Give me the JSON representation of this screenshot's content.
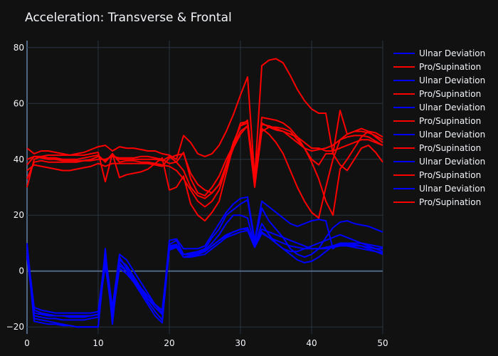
{
  "chart_data": {
    "type": "line",
    "title": "Acceleration: Transverse & Frontal",
    "xlabel": "",
    "ylabel": "",
    "xlim": [
      0,
      50
    ],
    "ylim": [
      -22.5,
      82.5
    ],
    "x_ticks": [
      "0",
      "10",
      "20",
      "30",
      "40",
      "50"
    ],
    "y_ticks": [
      "−20",
      "0",
      "20",
      "40",
      "60",
      "80"
    ],
    "grid": true,
    "legend_position": "right",
    "colors": {
      "Ulnar Deviation": "#0000ff",
      "Pro/Supination": "#ff0000"
    },
    "series": [
      {
        "name": "Ulnar Deviation",
        "color": "#0000ff",
        "values": [
          10,
          -17,
          -17.5,
          -18,
          -18.5,
          -19,
          -19.5,
          -20,
          -20,
          -20,
          -20,
          8,
          -19,
          5,
          1,
          -3,
          -7,
          -11,
          -14.5,
          -17.5,
          9.5,
          11,
          6,
          6.5,
          7,
          8,
          12,
          15,
          20,
          22,
          24,
          25.5,
          10,
          22.5,
          18,
          15,
          12,
          8,
          6,
          5,
          6,
          8,
          12,
          15.5,
          17.5,
          18,
          17,
          16.5,
          16,
          15,
          14
        ]
      },
      {
        "name": "Pro/Supination",
        "color": "#ff0000",
        "values": [
          30,
          40,
          41,
          41.5,
          41.5,
          41.5,
          41.5,
          41.5,
          41.5,
          42,
          42.5,
          32,
          42,
          33.5,
          34.5,
          35,
          35.5,
          36.5,
          38.5,
          40.5,
          29,
          30,
          34,
          24,
          20,
          18,
          21,
          25,
          35,
          45,
          53,
          53.5,
          34,
          53,
          51.5,
          50.5,
          50,
          49,
          48,
          46,
          44,
          44,
          43,
          43,
          44,
          45,
          46,
          47,
          47,
          46,
          45
        ]
      },
      {
        "name": "Ulnar Deviation",
        "color": "#0000ff",
        "values": [
          8,
          -13,
          -14,
          -14.5,
          -15,
          -15,
          -15,
          -15,
          -15,
          -15,
          -14.5,
          6,
          -13,
          6,
          4,
          0,
          -4,
          -8,
          -12,
          -15,
          11,
          11.5,
          8,
          8,
          8,
          9,
          13,
          17,
          21,
          24,
          26,
          26.5,
          11,
          25,
          23,
          21,
          19,
          17,
          16,
          17,
          18,
          18.5,
          18,
          8,
          10,
          10,
          10,
          10,
          9.5,
          9,
          8.5
        ]
      },
      {
        "name": "Pro/Supination",
        "color": "#ff0000",
        "values": [
          44,
          42,
          43,
          43,
          42.5,
          42,
          41.5,
          42,
          42.5,
          43.5,
          44.5,
          45,
          43,
          44.5,
          44,
          44,
          43.5,
          43,
          43,
          42,
          41.5,
          40,
          48.5,
          46,
          42,
          41,
          42,
          45,
          50,
          56,
          63,
          69.5,
          33.5,
          73.5,
          75.5,
          76,
          74.5,
          70,
          65,
          61,
          58,
          56.5,
          56.5,
          42,
          57.5,
          49,
          50,
          51,
          50,
          49.5,
          48
        ]
      },
      {
        "name": "Ulnar Deviation",
        "color": "#0000ff",
        "values": [
          6,
          -16,
          -16.5,
          -17,
          -17,
          -17.5,
          -17.5,
          -17.5,
          -17.5,
          -17,
          -16.5,
          3,
          -17,
          2,
          0,
          -3,
          -6,
          -9,
          -12,
          -14,
          8.5,
          9.5,
          6,
          6,
          6.5,
          7,
          9,
          11,
          13,
          14,
          15,
          15.5,
          9.5,
          15,
          14,
          13,
          12,
          11,
          10,
          9,
          8,
          8,
          8.5,
          9,
          9.5,
          9.5,
          9,
          9,
          8.5,
          8,
          8
        ]
      },
      {
        "name": "Pro/Supination",
        "color": "#ff0000",
        "values": [
          38,
          41,
          41,
          40.5,
          40.5,
          40,
          40,
          40,
          40.5,
          41,
          41.5,
          39,
          42,
          39,
          39.5,
          39.5,
          39,
          39,
          38.5,
          38,
          37.5,
          36,
          33,
          29,
          25,
          23,
          25,
          29,
          37,
          46,
          52,
          54,
          30.5,
          55,
          54.5,
          54,
          53,
          51,
          48,
          44,
          39,
          33,
          25,
          20,
          36.5,
          40,
          44,
          48,
          50,
          48,
          46
        ]
      },
      {
        "name": "Ulnar Deviation",
        "color": "#0000ff",
        "values": [
          9,
          -14,
          -15,
          -15.5,
          -16,
          -16,
          -16,
          -16,
          -16,
          -16,
          -15.5,
          4,
          -15,
          4,
          2,
          -2,
          -6,
          -10,
          -13,
          -15.5,
          9,
          9.5,
          6,
          6,
          6.5,
          7.5,
          10,
          13,
          17,
          20,
          20,
          19,
          9,
          17,
          13,
          10,
          8,
          7,
          7,
          8,
          9,
          10,
          11,
          12,
          13,
          12,
          11,
          10,
          9,
          8,
          7
        ]
      },
      {
        "name": "Pro/Supination",
        "color": "#ff0000",
        "values": [
          36,
          38,
          37.5,
          37,
          36.5,
          36,
          36,
          36.5,
          37,
          37.5,
          38.5,
          37.5,
          38.5,
          38.5,
          38.5,
          38.5,
          38.5,
          38.5,
          38,
          37.5,
          40.5,
          41.5,
          42,
          35,
          31,
          29,
          28,
          31,
          37,
          44,
          49,
          52,
          31,
          51,
          49,
          46,
          42,
          36,
          30,
          25,
          21,
          19,
          30,
          40,
          47,
          49,
          50,
          50,
          49.5,
          48.5,
          47
        ]
      },
      {
        "name": "Ulnar Deviation",
        "color": "#0000ff",
        "values": [
          7,
          -18,
          -18.5,
          -19,
          -19,
          -19.5,
          -19.5,
          -20,
          -20,
          -20,
          -20,
          5,
          -18,
          3,
          0,
          -4,
          -8,
          -12,
          -16,
          -18.5,
          8,
          9,
          5,
          5.5,
          6,
          7,
          9,
          11,
          12.5,
          14,
          15,
          15,
          9,
          14,
          12,
          10,
          8,
          6,
          4,
          3,
          3.5,
          5,
          7,
          9,
          10,
          10,
          9.5,
          9,
          8,
          7,
          6
        ]
      },
      {
        "name": "Pro/Supination",
        "color": "#ff0000",
        "values": [
          33,
          39,
          39.5,
          39,
          39,
          39,
          39,
          39,
          39.5,
          39.5,
          40,
          40,
          41,
          40.5,
          40.5,
          40.5,
          41,
          41,
          40.5,
          40,
          38.5,
          39,
          42.5,
          33,
          28,
          27,
          30,
          34,
          40,
          45,
          50,
          52,
          30,
          50,
          51.5,
          51.5,
          51,
          50,
          47,
          44,
          40,
          38,
          42,
          42,
          38,
          36,
          40,
          44,
          45,
          42.5,
          39
        ]
      },
      {
        "name": "Ulnar Deviation",
        "color": "#0000ff",
        "values": [
          5,
          -15,
          -15.5,
          -16,
          -16,
          -16,
          -16.5,
          -16.5,
          -16.5,
          -16,
          -15.5,
          2,
          -16,
          1,
          -1,
          -4,
          -7,
          -10,
          -12,
          -14,
          7.5,
          8.5,
          5,
          5,
          5.5,
          6,
          8,
          10,
          12,
          13,
          14,
          14.5,
          8.5,
          13.5,
          12,
          11,
          10,
          9,
          8.5,
          8,
          8,
          8,
          8,
          8.5,
          9,
          9,
          8.5,
          8,
          7.5,
          7,
          6.5
        ]
      },
      {
        "name": "Pro/Supination",
        "color": "#ff0000",
        "values": [
          40,
          41,
          40.5,
          40,
          40,
          39.5,
          39.5,
          39.5,
          39.5,
          40,
          41,
          39.5,
          41.5,
          40,
          40,
          40,
          40,
          40,
          40,
          39.5,
          41,
          39,
          36,
          30,
          27,
          26,
          28,
          31,
          38,
          46,
          52,
          53,
          31.5,
          52.5,
          52,
          51,
          50,
          48,
          46,
          44,
          43,
          43.5,
          44,
          45,
          47,
          48,
          48.5,
          48.5,
          48,
          46.5,
          45
        ]
      }
    ]
  }
}
